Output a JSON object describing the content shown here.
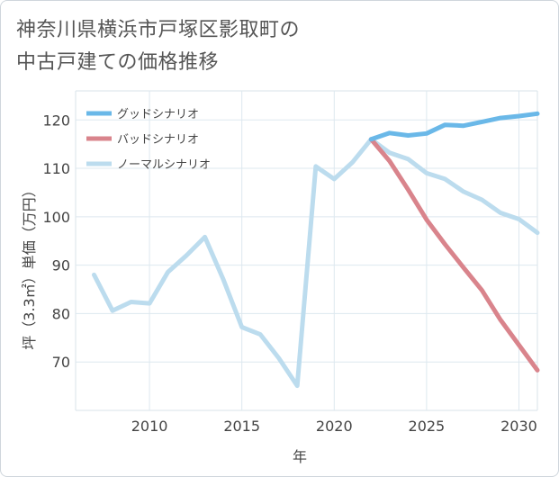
{
  "title": {
    "line1": "神奈川県横浜市戸塚区影取町の",
    "line2": "中古戸建ての価格推移"
  },
  "chart_data": {
    "type": "line",
    "title": "神奈川県横浜市戸塚区影取町の中古戸建ての価格推移",
    "xlabel": "年",
    "ylabel": "坪（3.3㎡）単価（万円）",
    "xlim": [
      2006,
      2031
    ],
    "ylim": [
      60,
      126
    ],
    "x_ticks": [
      2010,
      2015,
      2020,
      2025,
      2030
    ],
    "y_ticks": [
      70,
      80,
      90,
      100,
      110,
      120
    ],
    "grid": true,
    "legend_position": "top-left",
    "series": [
      {
        "name": "グッドシナリオ",
        "color": "#6ab8e8",
        "x": [
          2022,
          2023,
          2024,
          2025,
          2026,
          2027,
          2028,
          2029,
          2030,
          2031
        ],
        "y": [
          116.0,
          117.3,
          116.8,
          117.2,
          119.0,
          118.8,
          119.6,
          120.4,
          120.8,
          121.3
        ]
      },
      {
        "name": "バッドシナリオ",
        "color": "#d9848c",
        "x": [
          2022,
          2023,
          2024,
          2025,
          2026,
          2027,
          2028,
          2029,
          2030,
          2031
        ],
        "y": [
          116.0,
          111.5,
          105.6,
          99.4,
          94.3,
          89.5,
          84.8,
          78.7,
          73.5,
          68.3
        ]
      },
      {
        "name": "ノーマルシナリオ",
        "color": "#bcdcee",
        "x": [
          2007,
          2008,
          2009,
          2010,
          2011,
          2012,
          2013,
          2014,
          2015,
          2016,
          2017,
          2018,
          2019,
          2020,
          2021,
          2022,
          2023,
          2024,
          2025,
          2026,
          2027,
          2028,
          2029,
          2030,
          2031
        ],
        "y": [
          88.0,
          80.6,
          82.4,
          82.1,
          88.6,
          92.0,
          95.8,
          87.0,
          77.2,
          75.7,
          70.8,
          65.1,
          110.4,
          107.8,
          111.3,
          116.0,
          113.2,
          111.9,
          109.0,
          107.8,
          105.2,
          103.5,
          100.8,
          99.5,
          96.7
        ]
      }
    ]
  }
}
